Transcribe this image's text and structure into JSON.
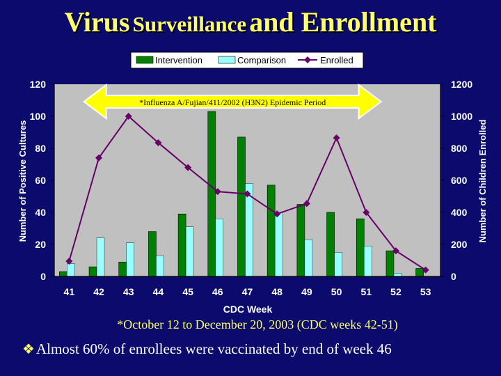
{
  "slide": {
    "title_part1": "Virus",
    "title_part2": "Surveillance",
    "title_part3": "and Enrollment",
    "footnote": "*October 12 to December 20, 2003 (CDC weeks 42-51)",
    "bullet": "Almost 60% of enrollees were vaccinated by end of week 46",
    "bullet_icon": "diamond-bullet-icon"
  },
  "colors": {
    "background": "#0b0b6e",
    "title": "#ffff66",
    "plot_area": "#c0c0c0",
    "intervention": "#008000",
    "comparison": "#99ffff",
    "enrolled": "#660066"
  },
  "chart_data": {
    "type": "bar",
    "xlabel": "CDC Week",
    "ylabel": "Number of Positive Cultures",
    "y2label": "Number  of Children Enrolled",
    "categories": [
      "41",
      "42",
      "43",
      "44",
      "45",
      "46",
      "47",
      "48",
      "49",
      "50",
      "51",
      "52",
      "53"
    ],
    "ylim": [
      0,
      120
    ],
    "yticks": [
      0,
      20,
      40,
      60,
      80,
      100,
      120
    ],
    "y2lim": [
      0,
      1200
    ],
    "y2ticks": [
      0,
      200,
      400,
      600,
      800,
      1000,
      1200
    ],
    "series": [
      {
        "name": "Intervention",
        "type": "bar",
        "axis": "left",
        "values": [
          3,
          6,
          9,
          28,
          39,
          103,
          87,
          57,
          45,
          40,
          36,
          16,
          5
        ]
      },
      {
        "name": "Comparison",
        "type": "bar",
        "axis": "left",
        "values": [
          8,
          24,
          21,
          13,
          31,
          36,
          58,
          40,
          23,
          15,
          19,
          2,
          0
        ]
      },
      {
        "name": "Enrolled",
        "type": "line",
        "axis": "right",
        "values": [
          95,
          740,
          1000,
          835,
          680,
          530,
          515,
          390,
          455,
          865,
          400,
          160,
          40
        ]
      }
    ],
    "legend": {
      "placement": "top-center"
    },
    "annotation": {
      "text": "*Influenza A/Fujian/411/2002 (H3N2)  Epidemic Period",
      "from": "42",
      "to": "51"
    },
    "grid": false
  }
}
